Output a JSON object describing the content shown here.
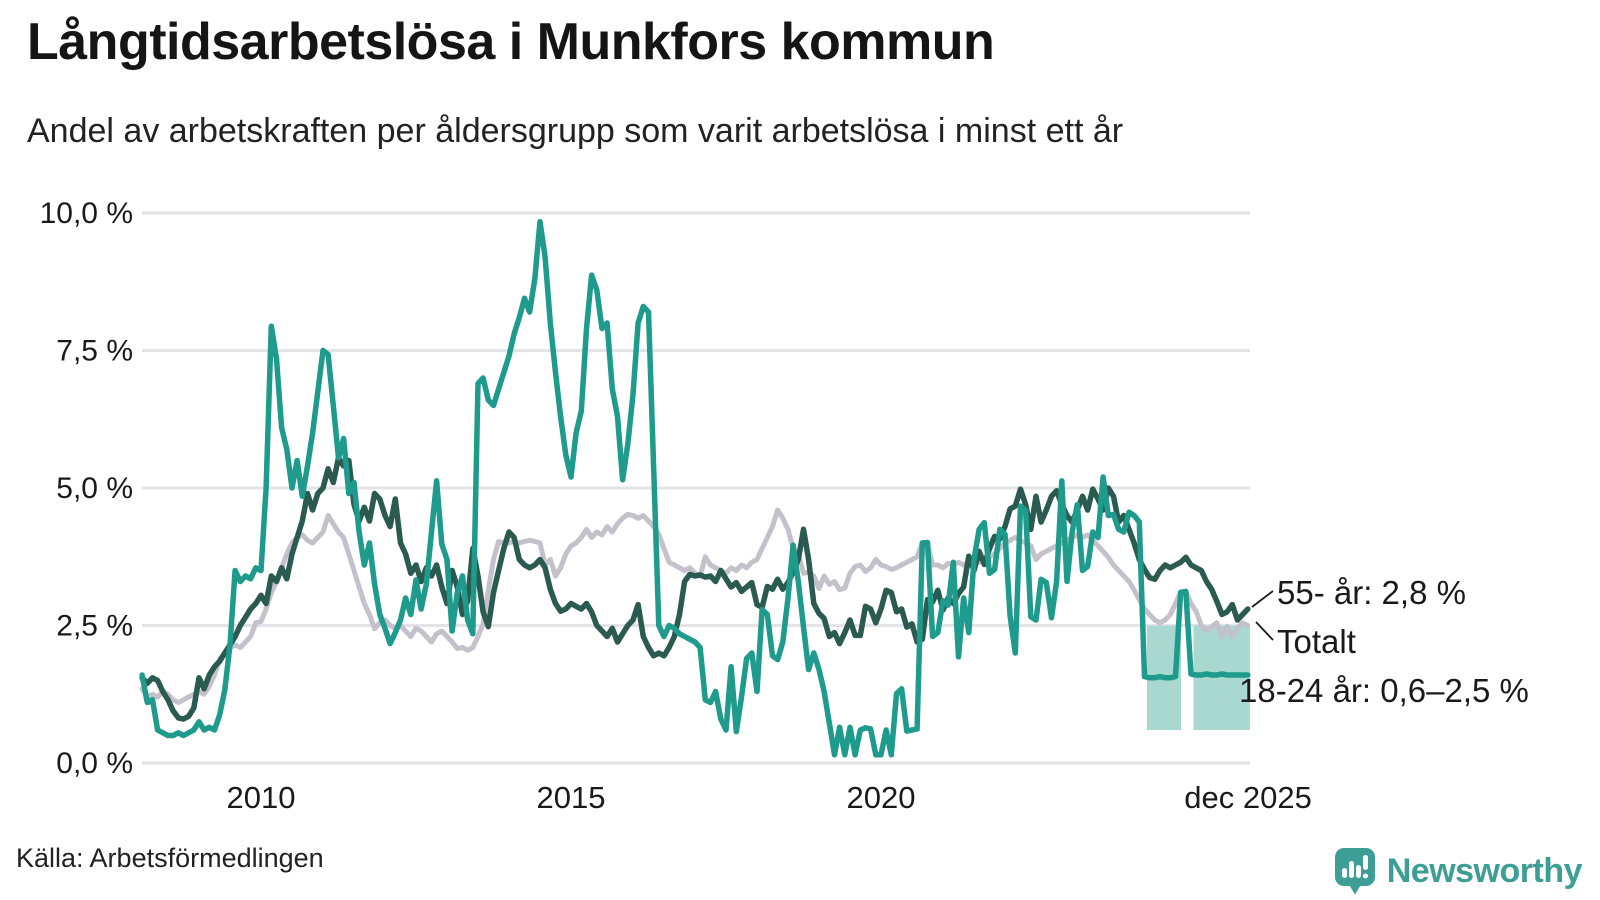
{
  "title": "Långtidsarbetslösa i Munkfors kommun",
  "subtitle": "Andel av arbetskraften per åldersgrupp som varit arbetslösa i minst ett år",
  "source": "Källa: Arbetsförmedlingen",
  "branding": {
    "wordmark": "Newsworthy",
    "color": "#3d9e96",
    "icon": "newsworthy-speech-bubble-chart-icon"
  },
  "colors": {
    "background": "#ffffff",
    "grid": "#e4e3e8",
    "text": "#1a1a1a",
    "teal_line": "#1e9b8c",
    "dark_green_line": "#2a5a50",
    "gray_line": "#c4c1cb",
    "uncertainty_band": "#a9d8d1"
  },
  "chart_data": {
    "type": "line",
    "title": "Långtidsarbetslösa i Munkfors kommun",
    "subtitle": "Andel av arbetskraften per åldersgrupp som varit arbetslösa i minst ett år",
    "unit": "% av arbetskraften",
    "frequency": "monthly",
    "x_start": 2008.083,
    "x_range": [
      2008.0,
      2026.05
    ],
    "ylim": [
      0,
      10
    ],
    "grid": "horizontal",
    "legend_position": "right-annotations",
    "y_ticks": [
      {
        "value": 0,
        "label": "0,0 %"
      },
      {
        "value": 2.5,
        "label": "2,5 %"
      },
      {
        "value": 5,
        "label": "5,0 %"
      },
      {
        "value": 7.5,
        "label": "7,5 %"
      },
      {
        "value": 10,
        "label": "10,0 %"
      }
    ],
    "x_ticks": [
      {
        "value": 2010,
        "label": "2010"
      },
      {
        "value": 2015,
        "label": "2015"
      },
      {
        "value": 2020,
        "label": "2020"
      },
      {
        "value": 2025.92,
        "label": "dec 2025"
      }
    ],
    "series": [
      {
        "name": "Totalt",
        "color": "#c4c1cb",
        "width": 5,
        "values": [
          1.35,
          1.2,
          1.25,
          1.2,
          1.3,
          1.25,
          1.15,
          1.1,
          1.15,
          1.2,
          1.25,
          1.3,
          1.25,
          1.4,
          1.6,
          1.88,
          2.0,
          2.1,
          2.15,
          2.1,
          2.2,
          2.3,
          2.55,
          2.57,
          2.8,
          3.1,
          3.3,
          3.55,
          3.8,
          4.0,
          4.1,
          4.15,
          4.05,
          4.0,
          4.1,
          4.2,
          4.5,
          4.35,
          4.2,
          4.1,
          3.8,
          3.5,
          3.2,
          2.9,
          2.7,
          2.44,
          2.55,
          2.6,
          2.5,
          2.45,
          2.5,
          2.4,
          2.3,
          2.45,
          2.4,
          2.3,
          2.2,
          2.35,
          2.4,
          2.3,
          2.2,
          2.08,
          2.1,
          2.05,
          2.1,
          2.3,
          2.53,
          3.14,
          3.7,
          4.03,
          4.0,
          4.0,
          4.03,
          4.0,
          4.03,
          4.05,
          4.03,
          4.0,
          3.6,
          3.7,
          3.4,
          3.55,
          3.8,
          3.95,
          4.0,
          4.1,
          4.25,
          4.1,
          4.2,
          4.15,
          4.3,
          4.2,
          4.35,
          4.45,
          4.52,
          4.5,
          4.45,
          4.5,
          4.4,
          4.3,
          4.16,
          3.9,
          3.65,
          3.6,
          3.55,
          3.5,
          3.55,
          3.45,
          3.4,
          3.75,
          3.6,
          3.55,
          3.5,
          3.45,
          3.55,
          3.5,
          3.6,
          3.55,
          3.65,
          3.7,
          3.9,
          4.1,
          4.3,
          4.6,
          4.45,
          4.25,
          3.9,
          3.8,
          3.45,
          3.47,
          3.4,
          3.17,
          3.4,
          3.25,
          3.3,
          3.15,
          3.18,
          3.45,
          3.57,
          3.6,
          3.48,
          3.55,
          3.7,
          3.6,
          3.57,
          3.52,
          3.55,
          3.6,
          3.65,
          3.7,
          3.75,
          4.0,
          3.98,
          3.6,
          3.6,
          3.55,
          3.63,
          3.6,
          3.65,
          3.6,
          3.65,
          3.7,
          3.65,
          3.7,
          3.75,
          3.8,
          3.9,
          4.0,
          4.05,
          4.1,
          4.05,
          4.0,
          3.95,
          3.7,
          3.8,
          3.85,
          3.9,
          3.95,
          4.0,
          4.05,
          4.1,
          4.15,
          4.1,
          4.15,
          4.05,
          3.95,
          3.85,
          3.74,
          3.6,
          3.5,
          3.4,
          3.3,
          3.15,
          2.97,
          2.8,
          2.7,
          2.6,
          2.55,
          2.6,
          2.7,
          2.9,
          3.1,
          3.12,
          2.9,
          2.76,
          2.5,
          2.4,
          2.48,
          2.55,
          2.3,
          2.48,
          2.3,
          2.45,
          2.55,
          2.5
        ]
      },
      {
        "name": "55- år",
        "color": "#2a5a50",
        "width": 5.5,
        "values": [
          1.55,
          1.45,
          1.55,
          1.5,
          1.3,
          1.15,
          0.95,
          0.82,
          0.8,
          0.85,
          1.0,
          1.55,
          1.35,
          1.6,
          1.75,
          1.85,
          2.0,
          2.15,
          2.3,
          2.5,
          2.65,
          2.8,
          2.9,
          3.05,
          2.9,
          3.4,
          3.3,
          3.55,
          3.35,
          3.8,
          4.1,
          4.4,
          4.9,
          4.6,
          4.9,
          5.0,
          5.35,
          5.1,
          5.55,
          5.4,
          5.5,
          4.7,
          4.4,
          4.65,
          4.4,
          4.9,
          4.8,
          4.5,
          4.3,
          4.8,
          4.0,
          3.8,
          3.45,
          3.6,
          3.3,
          3.55,
          3.4,
          3.6,
          3.2,
          2.9,
          3.5,
          3.2,
          2.7,
          2.95,
          3.9,
          3.4,
          2.75,
          2.48,
          3.1,
          3.5,
          3.9,
          4.2,
          4.1,
          3.7,
          3.6,
          3.55,
          3.6,
          3.7,
          3.55,
          3.16,
          2.9,
          2.76,
          2.8,
          2.9,
          2.85,
          2.8,
          2.9,
          2.75,
          2.5,
          2.4,
          2.3,
          2.45,
          2.2,
          2.35,
          2.5,
          2.6,
          2.88,
          2.3,
          2.1,
          1.95,
          2.0,
          1.95,
          2.1,
          2.3,
          2.7,
          3.3,
          3.43,
          3.4,
          3.42,
          3.38,
          3.4,
          3.3,
          3.5,
          3.35,
          3.2,
          3.28,
          3.12,
          3.2,
          3.28,
          2.88,
          2.83,
          3.21,
          3.16,
          3.34,
          3.16,
          3.28,
          3.47,
          3.7,
          4.25,
          3.7,
          2.9,
          2.72,
          2.63,
          2.3,
          2.37,
          2.17,
          2.37,
          2.6,
          2.32,
          2.32,
          2.85,
          2.8,
          2.55,
          2.8,
          3.14,
          3.1,
          2.75,
          2.8,
          2.47,
          2.53,
          2.2,
          2.25,
          2.97,
          2.93,
          3.14,
          2.78,
          3.0,
          2.9,
          3.08,
          3.2,
          3.76,
          3.5,
          3.85,
          3.61,
          3.9,
          4.12,
          4.07,
          4.3,
          4.62,
          4.67,
          4.98,
          4.7,
          4.25,
          4.85,
          4.38,
          4.6,
          4.85,
          4.95,
          4.7,
          4.5,
          4.38,
          4.6,
          4.85,
          4.6,
          4.98,
          4.8,
          4.6,
          5.0,
          4.85,
          4.38,
          4.5,
          4.25,
          4.0,
          3.7,
          3.52,
          3.37,
          3.34,
          3.5,
          3.6,
          3.55,
          3.6,
          3.65,
          3.74,
          3.6,
          3.55,
          3.5,
          3.3,
          3.16,
          2.94,
          2.7,
          2.75,
          2.88,
          2.6,
          2.7,
          2.8
        ]
      },
      {
        "name": "18-24 år",
        "color": "#1e9b8c",
        "width": 5.5,
        "values": [
          1.6,
          1.1,
          1.15,
          0.6,
          0.55,
          0.5,
          0.5,
          0.55,
          0.5,
          0.55,
          0.6,
          0.75,
          0.6,
          0.65,
          0.6,
          0.87,
          1.33,
          2.15,
          3.5,
          3.3,
          3.4,
          3.35,
          3.55,
          3.5,
          5.0,
          7.94,
          7.35,
          6.1,
          5.7,
          5.0,
          5.5,
          4.85,
          5.4,
          6.0,
          6.75,
          7.5,
          7.43,
          6.5,
          5.55,
          5.9,
          4.9,
          5.1,
          4.2,
          3.6,
          4.0,
          3.25,
          2.7,
          2.45,
          2.17,
          2.37,
          2.6,
          3.0,
          2.7,
          3.33,
          2.8,
          3.25,
          4.2,
          5.13,
          3.98,
          3.7,
          2.4,
          3.1,
          3.4,
          2.6,
          2.35,
          6.9,
          7.0,
          6.6,
          6.5,
          6.8,
          7.1,
          7.4,
          7.8,
          8.1,
          8.45,
          8.2,
          8.8,
          9.84,
          9.2,
          8.0,
          7.1,
          6.3,
          5.6,
          5.2,
          6.0,
          6.4,
          7.9,
          8.87,
          8.6,
          7.9,
          8.0,
          6.8,
          6.3,
          5.15,
          5.8,
          6.7,
          8.0,
          8.3,
          8.2,
          5.4,
          2.5,
          2.3,
          2.5,
          2.45,
          2.35,
          2.3,
          2.25,
          2.2,
          2.1,
          1.15,
          1.1,
          1.3,
          0.8,
          0.6,
          1.75,
          0.57,
          1.2,
          1.9,
          2.0,
          1.3,
          2.79,
          2.7,
          1.95,
          1.88,
          2.2,
          3.0,
          3.96,
          3.3,
          2.47,
          1.7,
          2.0,
          1.7,
          1.3,
          0.73,
          0.15,
          0.65,
          0.15,
          0.65,
          0.15,
          0.6,
          0.64,
          0.62,
          0.15,
          0.15,
          0.6,
          0.15,
          1.26,
          1.35,
          0.58,
          0.6,
          0.62,
          4.0,
          4.01,
          2.3,
          2.37,
          2.95,
          2.87,
          3.65,
          1.93,
          3.0,
          2.37,
          3.7,
          4.25,
          4.37,
          3.45,
          3.52,
          4.25,
          4.16,
          2.67,
          2.0,
          4.67,
          4.6,
          2.66,
          2.6,
          3.34,
          3.28,
          2.64,
          3.3,
          5.13,
          3.3,
          4.2,
          4.7,
          3.5,
          3.57,
          4.2,
          4.1,
          5.2,
          4.5,
          4.52,
          4.25,
          4.2,
          4.56,
          4.5,
          4.38,
          1.57,
          1.55,
          1.55,
          1.57,
          1.55,
          1.55,
          1.57,
          3.1,
          3.12,
          1.62,
          1.6,
          1.6,
          1.62,
          1.6,
          1.6,
          1.62,
          1.6,
          1.6,
          1.6,
          1.6,
          1.6
        ]
      }
    ],
    "uncertainty_band": {
      "series": "18-24 år",
      "low": 0.6,
      "high": 2.5,
      "color": "#a9d8d1",
      "segments": [
        [
          2024.29,
          2024.84
        ],
        [
          2025.04,
          2025.95
        ]
      ]
    },
    "annotations": [
      {
        "id": "a55",
        "label": "55- år: 2,8 %",
        "series": "55- år",
        "value": 2.8
      },
      {
        "id": "atot",
        "label": "Totalt",
        "series": "Totalt"
      },
      {
        "id": "a1824",
        "label": "18-24 år: 0,6–2,5 %",
        "series": "18-24 år",
        "value_range": [
          0.6,
          2.5
        ]
      }
    ]
  }
}
